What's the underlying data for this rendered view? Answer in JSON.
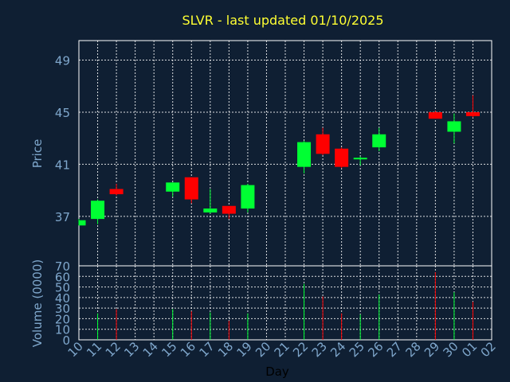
{
  "chart_data": {
    "type": "candlestick",
    "title": "SLVR - last updated 01/10/2025",
    "xlabel": "Day",
    "ylabel_price": "Price",
    "ylabel_volume": "Volume (0000)",
    "price_ylim": [
      33.2,
      50.5
    ],
    "price_ticks": [
      37,
      41,
      45,
      49
    ],
    "volume_ylim": [
      0,
      70
    ],
    "volume_ticks": [
      0,
      10,
      20,
      30,
      40,
      50,
      60,
      70
    ],
    "x_labels": [
      "10",
      "11",
      "12",
      "13",
      "14",
      "15",
      "16",
      "17",
      "18",
      "19",
      "20",
      "21",
      "22",
      "23",
      "24",
      "25",
      "26",
      "27",
      "28",
      "29",
      "30",
      "01",
      "02"
    ],
    "grid": true,
    "up_color": "#00ff33",
    "down_color": "#ff0000",
    "candles": [
      {
        "day": "10",
        "open": 36.3,
        "high": 36.8,
        "low": 36.3,
        "close": 36.7,
        "volume": 0
      },
      {
        "day": "11",
        "open": 36.8,
        "high": 38.3,
        "low": 36.4,
        "close": 38.2,
        "volume": 25
      },
      {
        "day": "12",
        "open": 39.1,
        "high": 39.5,
        "low": 38.6,
        "close": 38.7,
        "volume": 29
      },
      {
        "day": "15",
        "open": 38.9,
        "high": 39.6,
        "low": 38.5,
        "close": 39.6,
        "volume": 29
      },
      {
        "day": "16",
        "open": 40.0,
        "high": 40.0,
        "low": 38.0,
        "close": 38.3,
        "volume": 27
      },
      {
        "day": "17",
        "open": 37.3,
        "high": 39.1,
        "low": 37.2,
        "close": 37.6,
        "volume": 26
      },
      {
        "day": "18",
        "open": 37.8,
        "high": 37.8,
        "low": 36.8,
        "close": 37.2,
        "volume": 18
      },
      {
        "day": "19",
        "open": 37.6,
        "high": 39.5,
        "low": 37.3,
        "close": 39.4,
        "volume": 25
      },
      {
        "day": "22",
        "open": 40.8,
        "high": 42.8,
        "low": 40.3,
        "close": 42.7,
        "volume": 53
      },
      {
        "day": "23",
        "open": 43.3,
        "high": 43.8,
        "low": 41.7,
        "close": 41.8,
        "volume": 41
      },
      {
        "day": "24",
        "open": 42.2,
        "high": 42.3,
        "low": 40.7,
        "close": 40.8,
        "volume": 25
      },
      {
        "day": "25",
        "open": 41.4,
        "high": 41.6,
        "low": 40.9,
        "close": 41.5,
        "volume": 24
      },
      {
        "day": "26",
        "open": 42.3,
        "high": 43.8,
        "low": 42.0,
        "close": 43.3,
        "volume": 43
      },
      {
        "day": "29",
        "open": 45.0,
        "high": 45.1,
        "low": 44.5,
        "close": 44.5,
        "volume": 64
      },
      {
        "day": "30",
        "open": 43.5,
        "high": 44.9,
        "low": 42.6,
        "close": 44.3,
        "volume": 45
      },
      {
        "day": "01",
        "open": 45.0,
        "high": 46.3,
        "low": 44.6,
        "close": 44.7,
        "volume": 36
      }
    ]
  }
}
